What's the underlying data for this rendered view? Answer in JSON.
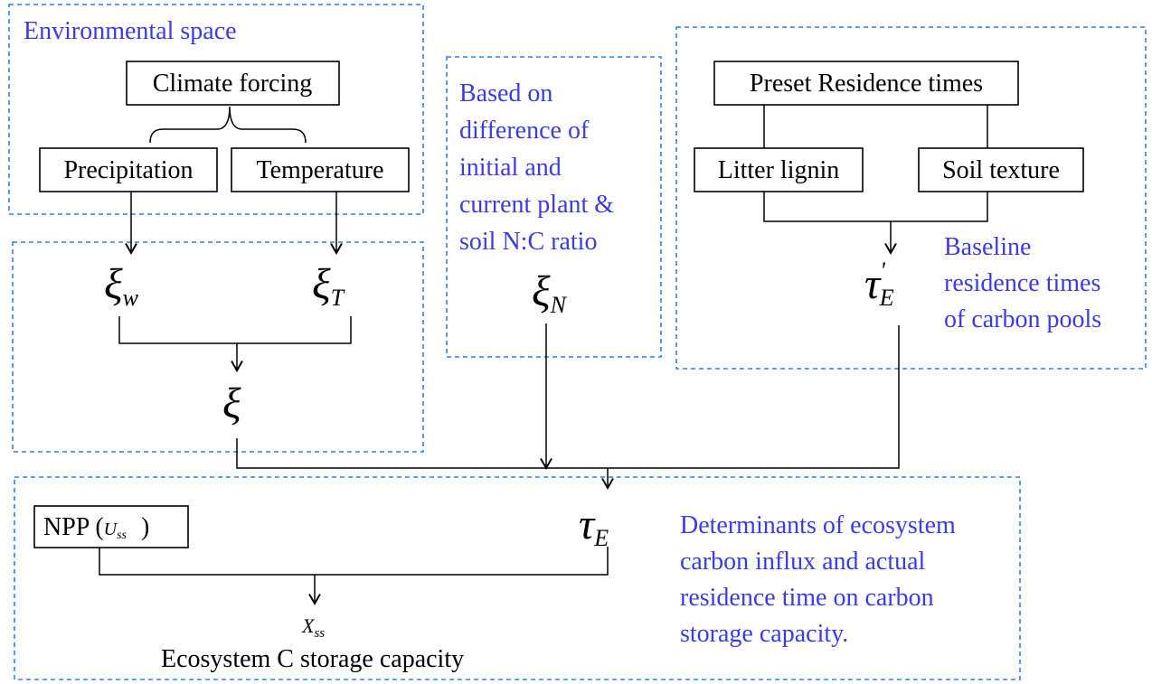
{
  "regions": {
    "environmental": "Environmental space",
    "nitrogen": [
      "Based on",
      "difference of",
      "initial and",
      "current plant &",
      "soil N:C ratio"
    ],
    "baseline": [
      "Baseline",
      "residence times",
      "of carbon pools"
    ],
    "determinants": [
      "Determinants of ecosystem",
      "carbon influx and actual",
      "residence time on carbon",
      "storage capacity."
    ]
  },
  "nodes": {
    "climate": "Climate forcing",
    "precipitation": "Precipitation",
    "temperature": "Temperature",
    "preset": "Preset Residence times",
    "lignin": "Litter lignin",
    "soil": "Soil texture",
    "npp": {
      "prefix": "NPP (",
      "symbol": "U",
      "subscript": "ss",
      "suffix": ")"
    },
    "output": "Ecosystem C storage capacity"
  },
  "symbols": {
    "xi_w": {
      "symbol": "ξ",
      "subscript": "w"
    },
    "xi_t": {
      "symbol": "ξ",
      "subscript": "T"
    },
    "xi_n": {
      "symbol": "ξ",
      "subscript": "N"
    },
    "xi": {
      "symbol": "ξ"
    },
    "tau_base": {
      "symbol": "τ",
      "superscript": "'",
      "subscript": "E"
    },
    "tau_e": {
      "symbol": "τ",
      "subscript": "E"
    },
    "x_ss": {
      "symbol": "X",
      "subscript": "ss"
    }
  }
}
